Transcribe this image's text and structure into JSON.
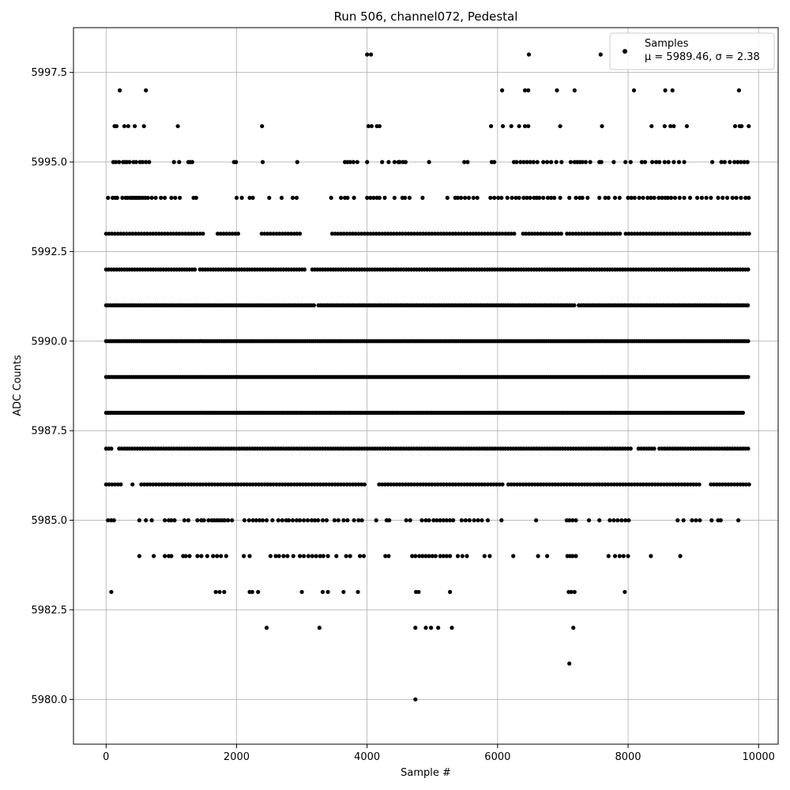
{
  "chart_data": {
    "type": "scatter",
    "title": "Run 506, channel072, Pedestal",
    "xlabel": "Sample #",
    "ylabel": "ADC Counts",
    "xlim": [
      -500,
      10300
    ],
    "ylim": [
      5978.75,
      5998.75
    ],
    "xticks": [
      0,
      2000,
      4000,
      6000,
      8000,
      10000
    ],
    "xtick_labels": [
      "0",
      "2000",
      "4000",
      "6000",
      "8000",
      "10000"
    ],
    "yticks": [
      5980.0,
      5982.5,
      5985.0,
      5987.5,
      5990.0,
      5992.5,
      5995.0,
      5997.5
    ],
    "ytick_labels": [
      "5980.0",
      "5982.5",
      "5985.0",
      "5987.5",
      "5990.0",
      "5992.5",
      "5995.0",
      "5997.5"
    ],
    "grid": true,
    "legend_position": "top-right",
    "marker_color": "#000000",
    "series": [
      {
        "name": "Samples",
        "stats_label": "μ = 5989.46, σ = 2.38",
        "mean": 5989.46,
        "sigma": 2.38,
        "levels": [
          {
            "y": 5998,
            "x": [
              4000,
              4060,
              6480,
              7580
            ]
          },
          {
            "y": 5997,
            "x": [
              210,
              610,
              6070,
              6420,
              6470,
              6910,
              7180,
              8090,
              8570,
              8680,
              9700
            ]
          },
          {
            "y": 5996,
            "x": [
              130,
              160,
              280,
              340,
              440,
              580,
              1100,
              2390,
              4020,
              4070,
              4150,
              4190,
              5900,
              6080,
              6210,
              6330,
              6420,
              6470,
              6960,
              7600,
              8360,
              8560,
              8650,
              8700,
              8900,
              9640,
              9710,
              9740,
              9850
            ]
          },
          {
            "y": 5995,
            "x": [
              110,
              150,
              200,
              260,
              290,
              320,
              360,
              420,
              460,
              520,
              560,
              610,
              660,
              1040,
              1120,
              1260,
              1290,
              1320,
              1960,
              1990,
              2400,
              2930,
              3660,
              3700,
              3740,
              3790,
              3850,
              4000,
              4230,
              4330,
              4420,
              4480,
              4500,
              4550,
              4590,
              4950,
              5490,
              5540,
              5910,
              5950,
              6250,
              6290,
              6350,
              6400,
              6450,
              6500,
              6550,
              6610,
              6700,
              6760,
              6820,
              6900,
              6980,
              7120,
              7180,
              7220,
              7260,
              7300,
              7350,
              7420,
              7560,
              7590,
              7780,
              7960,
              8040,
              8210,
              8260,
              8370,
              8430,
              8480,
              8560,
              8620,
              8700,
              8780,
              8860,
              9290,
              9430,
              9480,
              9560,
              9630,
              9680,
              9730,
              9780,
              9830
            ]
          },
          {
            "y": 5994,
            "x": [
              30,
              100,
              140,
              170,
              250,
              300,
              330,
              370,
              400,
              430,
              460,
              490,
              520,
              560,
              600,
              640,
              700,
              760,
              840,
              900,
              1000,
              1060,
              1130,
              1340,
              1380,
              2000,
              2080,
              2200,
              2250,
              2500,
              2690,
              2860,
              2920,
              3450,
              3600,
              3660,
              3700,
              3800,
              4000,
              4050,
              4100,
              4150,
              4190,
              4270,
              4420,
              4540,
              4580,
              4650,
              4850,
              5230,
              5350,
              5390,
              5440,
              5500,
              5560,
              5630,
              5690,
              5890,
              5950,
              6010,
              6060,
              6150,
              6220,
              6280,
              6330,
              6400,
              6450,
              6500,
              6560,
              6600,
              6640,
              6700,
              6770,
              6820,
              6870,
              6960,
              7100,
              7200,
              7260,
              7300,
              7380,
              7560,
              7650,
              7700,
              7800,
              7870,
              8000,
              8050,
              8100,
              8170,
              8230,
              8300,
              8350,
              8400,
              8470,
              8520,
              8570,
              8610,
              8660,
              8720,
              8790,
              8860,
              8950,
              9060,
              9130,
              9200,
              9270,
              9380,
              9450,
              9520,
              9600,
              9660,
              9730,
              9800,
              9850
            ]
          },
          {
            "y": 5993,
            "step": 45,
            "gaps": [
              [
                1500,
                1680
              ],
              [
                2050,
                2380
              ],
              [
                3000,
                3450
              ],
              [
                6300,
                6350
              ],
              [
                7000,
                7030
              ],
              [
                7900,
                7960
              ]
            ]
          },
          {
            "y": 5992,
            "step": 40,
            "gaps": [
              [
                1390,
                1430
              ],
              [
                3060,
                3130
              ]
            ]
          },
          {
            "y": 5991,
            "step": 35,
            "gaps": [
              [
                3200,
                3230
              ],
              [
                7190,
                7220
              ]
            ]
          },
          {
            "y": 5990,
            "step": 30,
            "gaps": []
          },
          {
            "y": 5989,
            "step": 30,
            "gaps": []
          },
          {
            "y": 5988,
            "step": 32,
            "gaps": [
              [
                9790,
                10000
              ]
            ]
          },
          {
            "y": 5987,
            "step": 40,
            "gaps": [
              [
                120,
                190
              ],
              [
                8050,
                8130
              ],
              [
                8440,
                8470
              ]
            ]
          },
          {
            "y": 5986,
            "step": 45,
            "gaps": [
              [
                250,
                380
              ],
              [
                420,
                520
              ],
              [
                3980,
                4180
              ],
              [
                6080,
                6150
              ],
              [
                9100,
                9250
              ]
            ]
          },
          {
            "y": 5985,
            "x": [
              30,
              80,
              120,
              510,
              610,
              700,
              900,
              960,
              1000,
              1050,
              1200,
              1260,
              1400,
              1460,
              1500,
              1570,
              1620,
              1660,
              1700,
              1740,
              1780,
              1820,
              1870,
              1930,
              2120,
              2190,
              2250,
              2300,
              2350,
              2400,
              2460,
              2550,
              2640,
              2700,
              2760,
              2800,
              2860,
              2920,
              2970,
              3030,
              3090,
              3150,
              3200,
              3250,
              3320,
              3380,
              3500,
              3560,
              3640,
              3700,
              3800,
              3870,
              3920,
              4140,
              4300,
              4340,
              4600,
              4660,
              4840,
              4900,
              4950,
              5020,
              5070,
              5120,
              5170,
              5220,
              5270,
              5320,
              5450,
              5510,
              5570,
              5640,
              5700,
              5760,
              5850,
              6060,
              6590,
              7060,
              7100,
              7150,
              7200,
              7400,
              7560,
              7720,
              7780,
              7840,
              7900,
              7960,
              8010,
              8760,
              8850,
              8980,
              9040,
              9100,
              9280,
              9380,
              9420,
              9690
            ]
          },
          {
            "y": 5984,
            "x": [
              510,
              730,
              900,
              960,
              1000,
              1180,
              1220,
              1280,
              1400,
              1460,
              1550,
              1640,
              1700,
              1760,
              1840,
              2110,
              2200,
              2520,
              2600,
              2650,
              2720,
              2780,
              2870,
              2970,
              3030,
              3100,
              3160,
              3220,
              3280,
              3330,
              3400,
              3530,
              3680,
              3740,
              3890,
              3950,
              4280,
              4330,
              4690,
              4740,
              4800,
              4850,
              4900,
              4950,
              5000,
              5050,
              5120,
              5170,
              5220,
              5270,
              5390,
              5460,
              5530,
              5800,
              5880,
              6240,
              6620,
              6760,
              7070,
              7110,
              7150,
              7200,
              7700,
              7800,
              7870,
              7930,
              8000,
              8350,
              8800
            ]
          },
          {
            "y": 5983,
            "x": [
              80,
              1680,
              1740,
              1810,
              2200,
              2240,
              2330,
              3000,
              3320,
              3400,
              3640,
              3860,
              4750,
              4790,
              5270,
              7090,
              7130,
              7180,
              7950
            ]
          },
          {
            "y": 5982,
            "x": [
              2460,
              3270,
              4740,
              4900,
              4980,
              5090,
              5300,
              7160
            ]
          },
          {
            "y": 5981,
            "x": [
              7100
            ]
          },
          {
            "y": 5980,
            "x": [
              4740
            ]
          }
        ]
      }
    ]
  }
}
